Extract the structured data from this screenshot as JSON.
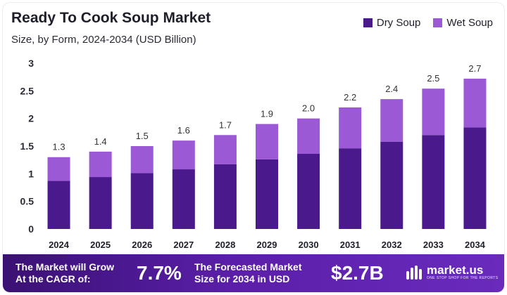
{
  "header": {
    "title": "Ready To Cook Soup Market",
    "subtitle": "Size, by Form, 2024-2034 (USD Billion)"
  },
  "colors": {
    "dry": "#4a1a8c",
    "wet": "#9b59d6",
    "label": "#333333"
  },
  "chart_data": {
    "type": "bar",
    "stacked": true,
    "categories": [
      "2024",
      "2025",
      "2026",
      "2027",
      "2028",
      "2029",
      "2030",
      "2031",
      "2032",
      "2033",
      "2034"
    ],
    "series": [
      {
        "name": "Dry Soup",
        "values": [
          0.87,
          0.94,
          1.01,
          1.08,
          1.17,
          1.26,
          1.36,
          1.46,
          1.58,
          1.7,
          1.84
        ]
      },
      {
        "name": "Wet Soup",
        "values": [
          0.43,
          0.46,
          0.49,
          0.52,
          0.53,
          0.64,
          0.64,
          0.74,
          0.77,
          0.84,
          0.88
        ]
      }
    ],
    "totals_labels": [
      "1.3",
      "1.4",
      "1.5",
      "1.6",
      "1.7",
      "1.9",
      "2.0",
      "2.2",
      "2.4",
      "2.5",
      "2.7"
    ],
    "yticks": [
      "0",
      "0.5",
      "1",
      "1.5",
      "2",
      "2.5",
      "3"
    ],
    "ylim": [
      0,
      3
    ],
    "grid": false,
    "legend": "top-right"
  },
  "footer": {
    "cagr_line1": "The Market will Grow",
    "cagr_line2": "At the CAGR of:",
    "cagr_value": "7.7%",
    "forecast_line1": "The Forecasted Market",
    "forecast_line2": "Size for 2034 in USD",
    "forecast_value": "$2.7B",
    "brand_name": "market.us",
    "brand_tagline": "ONE STOP SHOP FOR THE REPORTS"
  }
}
